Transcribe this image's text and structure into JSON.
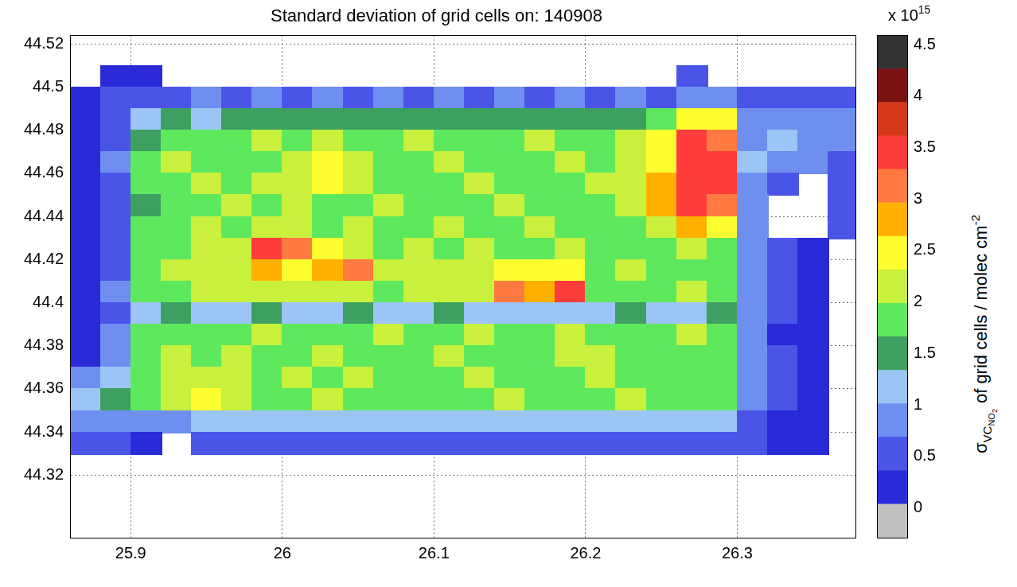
{
  "chart_data": {
    "type": "heatmap",
    "title": "Standard deviation of grid cells on: 140908",
    "xlim": [
      25.86,
      26.378
    ],
    "ylim": [
      44.291,
      44.524
    ],
    "xticks": [
      25.9,
      26,
      26.1,
      26.2,
      26.3
    ],
    "yticks": [
      44.32,
      44.34,
      44.36,
      44.38,
      44.4,
      44.42,
      44.44,
      44.46,
      44.48,
      44.5,
      44.52
    ],
    "grid": true,
    "x": [
      25.87,
      25.89,
      25.91,
      25.93,
      25.95,
      25.97,
      25.99,
      26.01,
      26.03,
      26.05,
      26.07,
      26.09,
      26.11,
      26.13,
      26.15,
      26.17,
      26.19,
      26.21,
      26.23,
      26.25,
      26.27,
      26.29,
      26.31,
      26.33,
      26.35,
      26.37
    ],
    "y": [
      44.505,
      44.495,
      44.485,
      44.475,
      44.465,
      44.455,
      44.445,
      44.435,
      44.425,
      44.415,
      44.405,
      44.395,
      44.385,
      44.375,
      44.365,
      44.355,
      44.345,
      44.335
    ],
    "values": [
      [
        null,
        0.3,
        0.3,
        null,
        null,
        null,
        null,
        null,
        null,
        null,
        null,
        null,
        null,
        null,
        null,
        null,
        null,
        null,
        null,
        null,
        0.4,
        null,
        null,
        null,
        null,
        null
      ],
      [
        0.3,
        0.4,
        0.6,
        0.6,
        0.7,
        0.6,
        0.7,
        0.6,
        0.7,
        0.6,
        0.7,
        0.6,
        0.7,
        0.6,
        0.7,
        0.6,
        0.7,
        0.6,
        0.7,
        0.6,
        0.8,
        0.7,
        0.5,
        0.5,
        0.5,
        0.5
      ],
      [
        0.3,
        0.5,
        1.2,
        1.4,
        1.3,
        1.5,
        1.4,
        1.6,
        1.5,
        1.4,
        1.5,
        1.6,
        1.4,
        1.5,
        1.4,
        1.5,
        1.4,
        1.5,
        1.6,
        1.8,
        2.6,
        2.4,
        0.9,
        1.0,
        0.9,
        0.7
      ],
      [
        0.3,
        0.6,
        1.6,
        1.9,
        1.7,
        1.8,
        2.0,
        1.8,
        2.1,
        1.9,
        1.8,
        2.0,
        1.9,
        1.8,
        1.9,
        2.0,
        1.8,
        1.9,
        2.0,
        2.4,
        3.4,
        3.2,
        1.0,
        1.2,
        1.0,
        0.8
      ],
      [
        0.3,
        0.7,
        1.7,
        2.0,
        1.9,
        1.8,
        1.9,
        2.2,
        2.6,
        2.0,
        1.8,
        1.9,
        2.0,
        1.9,
        1.8,
        1.9,
        2.0,
        1.9,
        2.1,
        2.6,
        3.5,
        3.6,
        1.1,
        0.9,
        0.8,
        0.6
      ],
      [
        0.3,
        0.6,
        1.8,
        1.9,
        2.0,
        1.9,
        2.0,
        2.1,
        2.4,
        2.0,
        1.9,
        1.8,
        1.9,
        2.0,
        1.9,
        1.8,
        1.9,
        2.0,
        2.0,
        2.8,
        3.4,
        3.5,
        1.0,
        0.5,
        null,
        0.5
      ],
      [
        0.3,
        0.6,
        1.6,
        1.9,
        1.8,
        2.0,
        1.9,
        2.0,
        1.9,
        1.8,
        2.0,
        1.9,
        1.8,
        1.9,
        2.0,
        1.9,
        1.8,
        1.9,
        2.0,
        2.7,
        3.3,
        3.2,
        0.9,
        null,
        null,
        0.4
      ],
      [
        0.3,
        0.6,
        1.7,
        1.8,
        2.0,
        1.9,
        2.1,
        2.0,
        1.9,
        2.0,
        1.8,
        1.9,
        2.0,
        1.8,
        1.9,
        2.0,
        1.9,
        1.8,
        1.9,
        2.3,
        2.8,
        2.6,
        0.8,
        null,
        null,
        0.4
      ],
      [
        0.3,
        0.6,
        1.8,
        1.9,
        2.0,
        2.2,
        3.6,
        3.2,
        2.4,
        2.0,
        1.9,
        2.0,
        1.9,
        2.0,
        1.8,
        1.9,
        2.0,
        1.9,
        1.8,
        1.9,
        2.0,
        1.9,
        0.8,
        0.4,
        0.3,
        null
      ],
      [
        0.3,
        0.6,
        1.9,
        2.0,
        2.1,
        2.3,
        2.8,
        2.6,
        2.9,
        3.0,
        2.0,
        2.1,
        2.2,
        2.0,
        2.6,
        2.5,
        2.4,
        1.9,
        2.0,
        1.9,
        1.8,
        1.9,
        0.8,
        0.4,
        0.3,
        null
      ],
      [
        0.3,
        0.7,
        1.8,
        1.9,
        2.0,
        2.1,
        2.0,
        2.2,
        2.1,
        2.3,
        1.9,
        2.0,
        2.1,
        2.2,
        3.0,
        2.9,
        3.4,
        1.9,
        1.8,
        1.9,
        2.0,
        1.8,
        0.7,
        0.4,
        0.3,
        null
      ],
      [
        0.3,
        0.6,
        1.3,
        1.4,
        1.2,
        1.3,
        1.4,
        1.2,
        1.3,
        1.4,
        1.2,
        1.3,
        1.4,
        1.2,
        1.3,
        1.2,
        1.1,
        1.3,
        1.4,
        1.3,
        1.2,
        1.4,
        0.7,
        0.4,
        0.3,
        null
      ],
      [
        0.3,
        0.7,
        1.7,
        1.9,
        1.8,
        1.9,
        2.0,
        1.9,
        1.8,
        1.9,
        2.0,
        1.8,
        1.9,
        2.0,
        1.9,
        1.8,
        2.3,
        1.9,
        1.8,
        1.9,
        2.0,
        1.9,
        0.8,
        0.3,
        0.3,
        null
      ],
      [
        0.3,
        0.8,
        1.8,
        2.0,
        1.9,
        2.1,
        1.9,
        1.8,
        2.0,
        1.9,
        1.8,
        1.9,
        2.0,
        1.9,
        1.8,
        1.9,
        2.0,
        2.1,
        1.9,
        1.8,
        1.9,
        1.8,
        0.8,
        0.4,
        0.3,
        null
      ],
      [
        1.0,
        1.3,
        1.9,
        2.2,
        2.3,
        2.0,
        1.9,
        2.0,
        1.9,
        2.0,
        1.9,
        1.8,
        1.9,
        2.0,
        1.9,
        1.8,
        1.9,
        2.0,
        1.9,
        1.8,
        1.9,
        1.8,
        0.7,
        0.4,
        0.3,
        null
      ],
      [
        1.2,
        1.4,
        1.8,
        2.1,
        2.4,
        2.2,
        1.9,
        1.8,
        2.0,
        1.9,
        1.8,
        1.9,
        1.8,
        1.9,
        2.0,
        1.9,
        1.8,
        1.9,
        2.0,
        1.9,
        1.8,
        1.9,
        0.7,
        0.4,
        0.3,
        null
      ],
      [
        1.0,
        0.9,
        0.7,
        0.8,
        1.3,
        1.2,
        1.1,
        1.2,
        1.3,
        1.1,
        1.2,
        1.3,
        1.1,
        1.2,
        1.3,
        1.2,
        1.1,
        1.2,
        1.3,
        1.2,
        1.1,
        1.2,
        0.6,
        0.3,
        0.3,
        null
      ],
      [
        0.6,
        0.4,
        0.3,
        null,
        0.5,
        0.5,
        0.5,
        0.5,
        0.5,
        0.5,
        0.5,
        0.5,
        0.5,
        0.5,
        0.5,
        0.5,
        0.5,
        0.5,
        0.5,
        0.5,
        0.5,
        0.5,
        0.4,
        0.3,
        0.3,
        null
      ]
    ],
    "colorbar": {
      "range": [
        -0.29,
        4.59
      ],
      "ticks": [
        0,
        0.5,
        1,
        1.5,
        2,
        2.5,
        3,
        3.5,
        4,
        4.5
      ],
      "colors": [
        "#c0c0c0",
        "#2a2ad8",
        "#4a55e8",
        "#6f8ff0",
        "#9cc4f5",
        "#3ea060",
        "#5ee85e",
        "#c8f03c",
        "#ffff30",
        "#ffb000",
        "#ff7a40",
        "#ff3c3c",
        "#d43a1a",
        "#7a1212",
        "#333333"
      ],
      "multiplier": {
        "base": "x 10",
        "exponent": "15"
      },
      "label": {
        "symbol": "σ",
        "symbol_subscript": "VC",
        "subscript_subscript": "NO",
        "subscript_subscript_subscript": "2",
        "text": "of grid cells / molec cm",
        "superscript": "-2"
      }
    }
  }
}
